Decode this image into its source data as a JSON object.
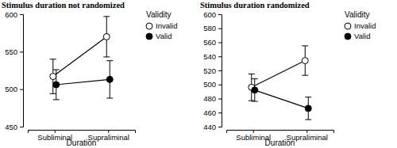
{
  "chart_data": [
    {
      "type": "line",
      "title": "Stimulus duration not randomized",
      "x_label": "Duration",
      "legend_title": "Validity",
      "categories": [
        "Subliminal",
        "Supraliminal"
      ],
      "series": [
        {
          "name": "Invalid",
          "color": "#000000",
          "marker": "circle-open",
          "values": [
            517,
            570
          ],
          "errors": [
            23,
            27
          ]
        },
        {
          "name": "Valid",
          "color": "#000000",
          "marker": "circle",
          "values": [
            506,
            513
          ],
          "errors": [
            20,
            25
          ]
        }
      ],
      "ylim": [
        450,
        600
      ],
      "yticks": [
        450,
        500,
        550,
        600
      ],
      "legend": "right"
    },
    {
      "type": "line",
      "title": "Stimulus duration randomized",
      "x_label": "Duration",
      "legend_title": "Validity",
      "categories": [
        "Subliminal",
        "Supraliminal"
      ],
      "series": [
        {
          "name": "Invalid",
          "color": "#000000",
          "marker": "circle-open",
          "values": [
            496,
            534
          ],
          "errors": [
            19,
            21
          ]
        },
        {
          "name": "Valid",
          "color": "#000000",
          "marker": "circle",
          "values": [
            492,
            466
          ],
          "errors": [
            16,
            16
          ]
        }
      ],
      "ylim": [
        440,
        600
      ],
      "yticks": [
        440,
        460,
        480,
        500,
        520,
        540,
        560,
        580,
        600
      ],
      "legend": "right"
    }
  ]
}
